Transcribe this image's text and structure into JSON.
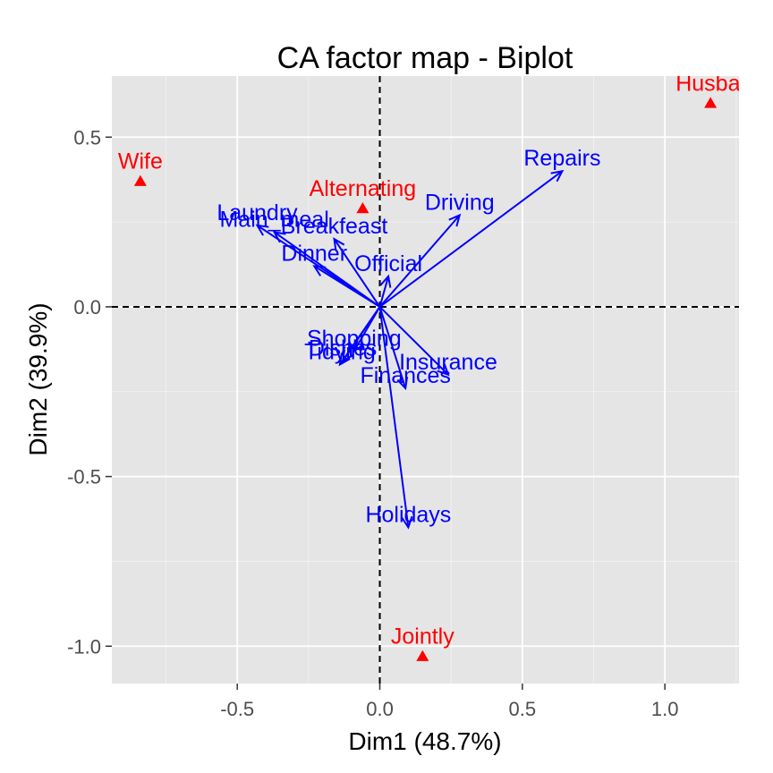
{
  "chart_data": {
    "type": "scatter",
    "title": "CA factor map - Biplot",
    "xlabel": "Dim1 (48.7%)",
    "ylabel": "Dim2 (39.9%)",
    "xlim": [
      -0.94,
      1.26
    ],
    "ylim": [
      -1.11,
      0.68
    ],
    "x_ticks": [
      -0.5,
      0.0,
      0.5,
      1.0
    ],
    "x_tick_labels": [
      "-0.5",
      "0.0",
      "0.5",
      "1.0"
    ],
    "y_ticks": [
      -1.0,
      -0.5,
      0.0,
      0.5
    ],
    "y_tick_labels": [
      "-1.0",
      "-0.5",
      "0.0",
      "0.5"
    ],
    "grid": true,
    "colors": {
      "columns": "#ff0000",
      "rows": "#0000ff",
      "panel": "#e5e5e5",
      "grid": "#ffffff"
    },
    "column_points": [
      {
        "name": "Wife",
        "label": "Wife",
        "x": -0.84,
        "y": 0.37
      },
      {
        "name": "Alternating",
        "label": "Alternating",
        "x": -0.06,
        "y": 0.29
      },
      {
        "name": "Husband",
        "label": "Husbai",
        "x": 1.16,
        "y": 0.6
      },
      {
        "name": "Jointly",
        "label": "Jointly",
        "x": 0.15,
        "y": -1.03
      }
    ],
    "row_arrows": [
      {
        "name": "Laundry",
        "label": "Laundry",
        "x": -0.43,
        "y": 0.24
      },
      {
        "name": "Main_meal",
        "label": "Main_meal",
        "x": -0.37,
        "y": 0.22
      },
      {
        "name": "Breakfeast",
        "label": "Breakfeast",
        "x": -0.16,
        "y": 0.2
      },
      {
        "name": "Dinner",
        "label": "Dinner",
        "x": -0.23,
        "y": 0.12
      },
      {
        "name": "Official",
        "label": "Official",
        "x": 0.03,
        "y": 0.09
      },
      {
        "name": "Driving",
        "label": "Driving",
        "x": 0.28,
        "y": 0.27
      },
      {
        "name": "Repairs",
        "label": "Repairs",
        "x": 0.64,
        "y": 0.4
      },
      {
        "name": "Shopping",
        "label": "Shopping",
        "x": -0.09,
        "y": -0.13
      },
      {
        "name": "Dishes",
        "label": "Dishes",
        "x": -0.13,
        "y": -0.16
      },
      {
        "name": "Tidying",
        "label": "Tidying",
        "x": -0.14,
        "y": -0.17
      },
      {
        "name": "Insurance",
        "label": "Insurance",
        "x": 0.24,
        "y": -0.2
      },
      {
        "name": "Finances",
        "label": "Finances",
        "x": 0.09,
        "y": -0.24
      },
      {
        "name": "Holidays",
        "label": "Holidays",
        "x": 0.1,
        "y": -0.65
      }
    ]
  }
}
